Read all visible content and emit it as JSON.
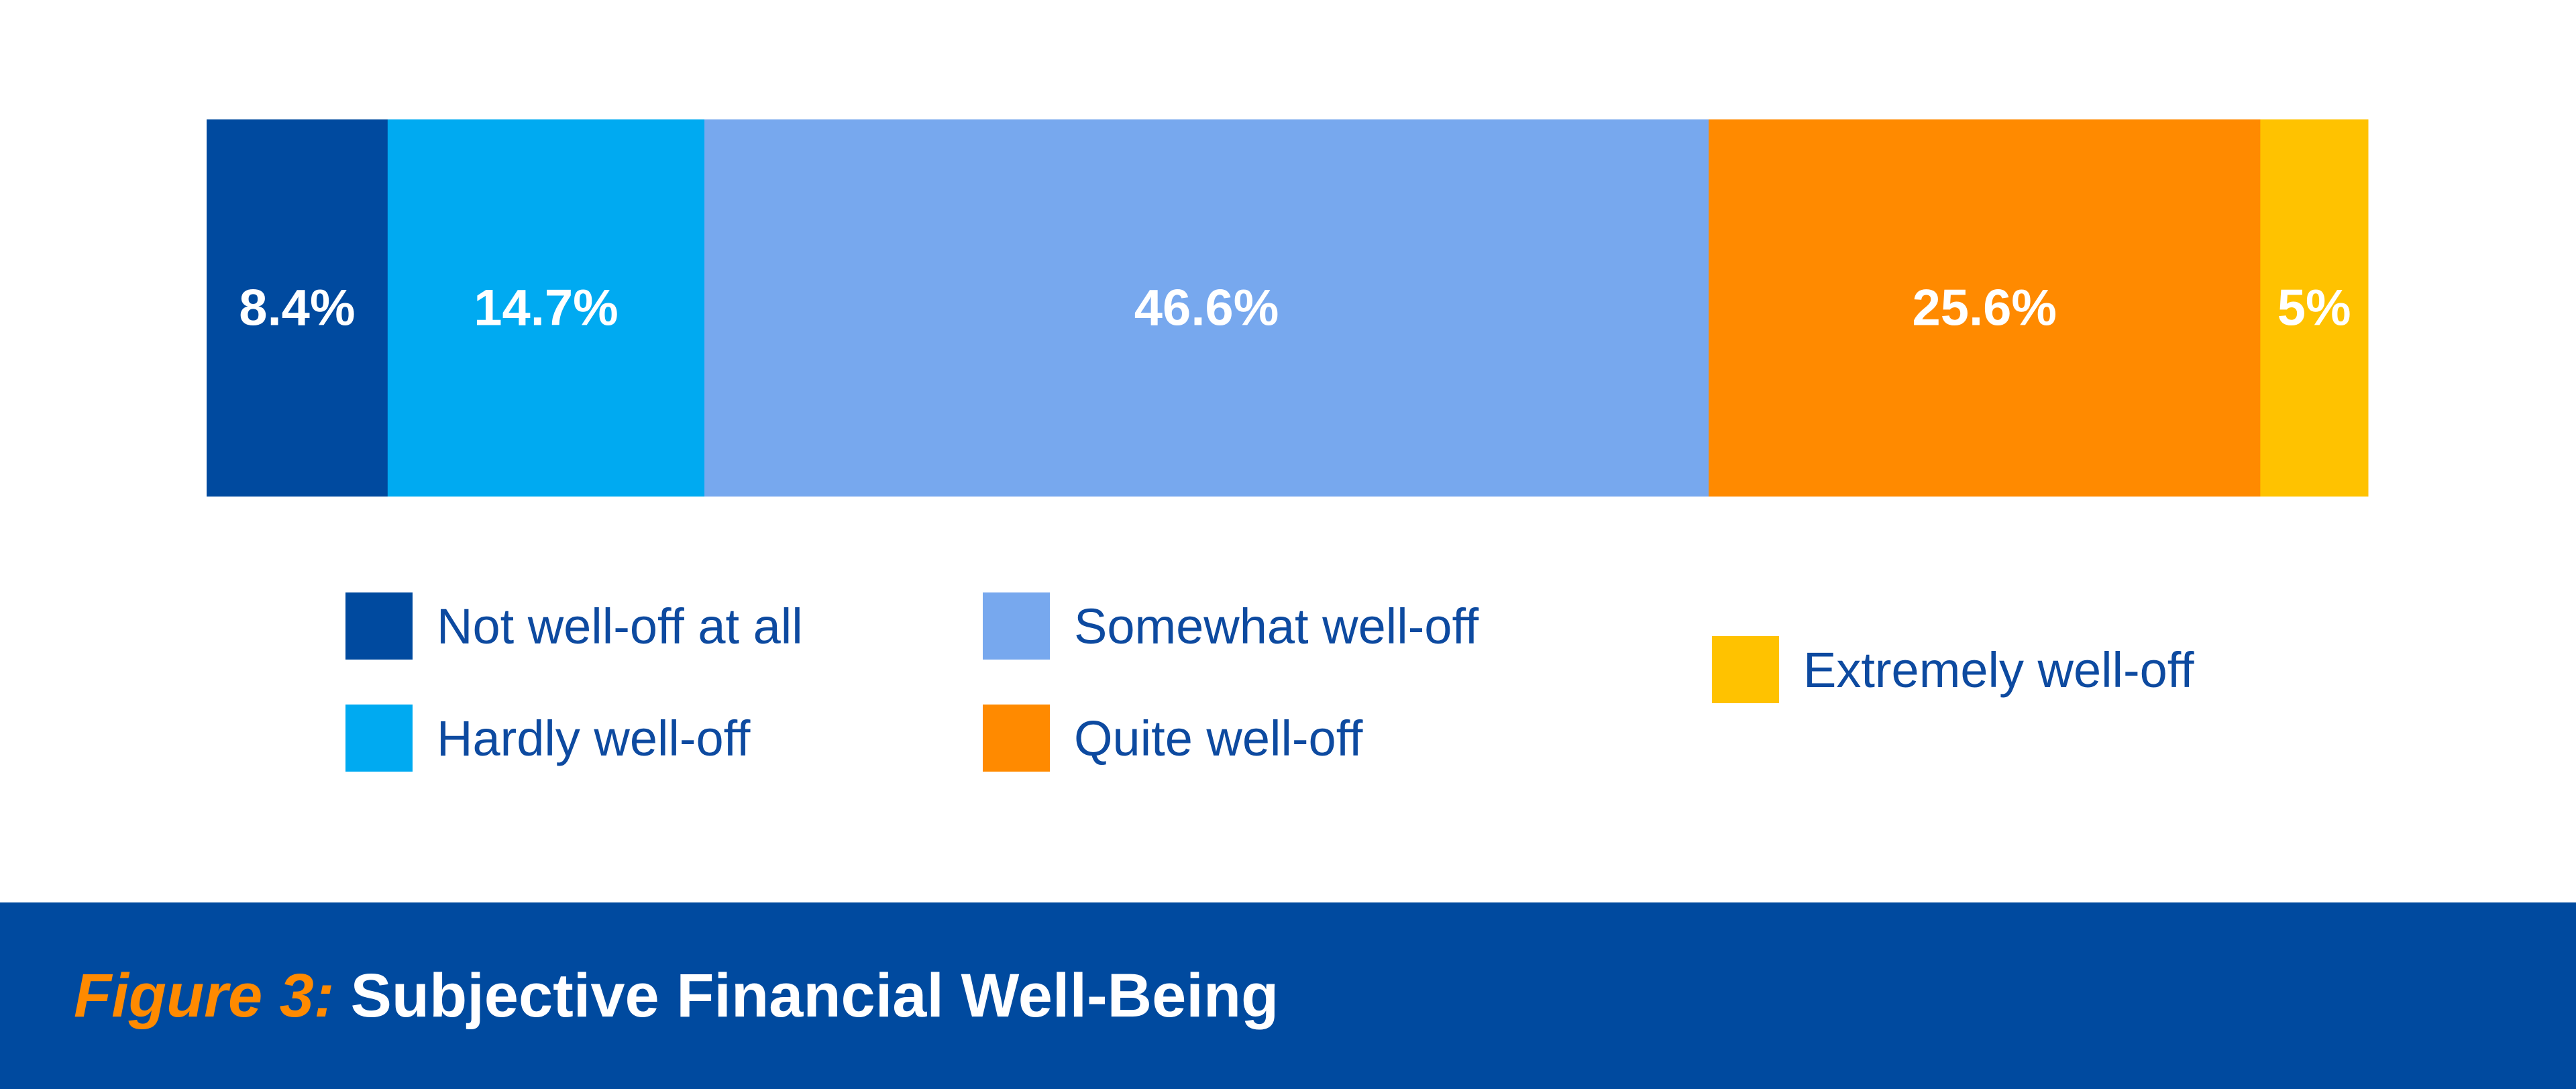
{
  "chart_data": {
    "type": "bar",
    "orientation": "horizontal",
    "stacked": true,
    "series": [
      {
        "name": "Not well-off at all",
        "value": 8.4,
        "label": "8.4%",
        "color": "#004a9f"
      },
      {
        "name": "Hardly well-off",
        "value": 14.7,
        "label": "14.7%",
        "color": "#00aaf1"
      },
      {
        "name": "Somewhat well-off",
        "value": 46.6,
        "label": "46.6%",
        "color": "#77a8ee"
      },
      {
        "name": "Quite well-off",
        "value": 25.6,
        "label": "25.6%",
        "color": "#ff8a00"
      },
      {
        "name": "Extremely well-off",
        "value": 5,
        "label": "5%",
        "color": "#ffc200"
      }
    ],
    "xlim": [
      0,
      100.3
    ],
    "grid": false,
    "legend": "bottom"
  },
  "figure": {
    "number": "Figure 3:",
    "title": "Subjective Financial Well-Being"
  },
  "colors": {
    "footer_bg": "#004a9f",
    "figure_number": "#ff8a00",
    "legend_text": "#0d4aa0"
  }
}
